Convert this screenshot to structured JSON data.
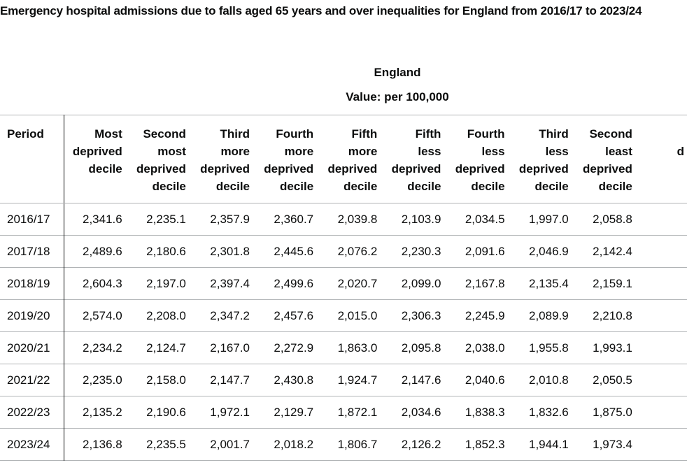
{
  "title": "Emergency hospital admissions due to falls aged 65 years and over inequalities for England from 2016/17 to 2023/24",
  "area": "England",
  "measure": "Value: per 100,000",
  "columns": [
    {
      "lines": [
        "Period"
      ]
    },
    {
      "lines": [
        "Most",
        "deprived",
        "decile"
      ]
    },
    {
      "lines": [
        "Second",
        "most",
        "deprived",
        "decile"
      ]
    },
    {
      "lines": [
        "Third",
        "more",
        "deprived",
        "decile"
      ]
    },
    {
      "lines": [
        "Fourth",
        "more",
        "deprived",
        "decile"
      ]
    },
    {
      "lines": [
        "Fifth",
        "more",
        "deprived",
        "decile"
      ]
    },
    {
      "lines": [
        "Fifth",
        "less",
        "deprived",
        "decile"
      ]
    },
    {
      "lines": [
        "Fourth",
        "less",
        "deprived",
        "decile"
      ]
    },
    {
      "lines": [
        "Third",
        "less",
        "deprived",
        "decile"
      ]
    },
    {
      "lines": [
        "Second",
        "least",
        "deprived",
        "decile"
      ]
    },
    {
      "lines": [
        "",
        "d"
      ]
    }
  ],
  "rows": [
    {
      "period": "2016/17",
      "values": [
        "2,341.6",
        "2,235.1",
        "2,357.9",
        "2,360.7",
        "2,039.8",
        "2,103.9",
        "2,034.5",
        "1,997.0",
        "2,058.8"
      ]
    },
    {
      "period": "2017/18",
      "values": [
        "2,489.6",
        "2,180.6",
        "2,301.8",
        "2,445.6",
        "2,076.2",
        "2,230.3",
        "2,091.6",
        "2,046.9",
        "2,142.4"
      ]
    },
    {
      "period": "2018/19",
      "values": [
        "2,604.3",
        "2,197.0",
        "2,397.4",
        "2,499.6",
        "2,020.7",
        "2,099.0",
        "2,167.8",
        "2,135.4",
        "2,159.1"
      ]
    },
    {
      "period": "2019/20",
      "values": [
        "2,574.0",
        "2,208.0",
        "2,347.2",
        "2,457.6",
        "2,015.0",
        "2,306.3",
        "2,245.9",
        "2,089.9",
        "2,210.8"
      ]
    },
    {
      "period": "2020/21",
      "values": [
        "2,234.2",
        "2,124.7",
        "2,167.0",
        "2,272.9",
        "1,863.0",
        "2,095.8",
        "2,038.0",
        "1,955.8",
        "1,993.1"
      ]
    },
    {
      "period": "2021/22",
      "values": [
        "2,235.0",
        "2,158.0",
        "2,147.7",
        "2,430.8",
        "1,924.7",
        "2,147.6",
        "2,040.6",
        "2,010.8",
        "2,050.5"
      ]
    },
    {
      "period": "2022/23",
      "values": [
        "2,135.2",
        "2,190.6",
        "1,972.1",
        "2,129.7",
        "1,872.1",
        "2,034.6",
        "1,838.3",
        "1,832.6",
        "1,875.0"
      ]
    },
    {
      "period": "2023/24",
      "values": [
        "2,136.8",
        "2,235.5",
        "2,001.7",
        "2,018.2",
        "1,806.7",
        "2,126.2",
        "1,852.3",
        "1,944.1",
        "1,973.4"
      ]
    }
  ]
}
